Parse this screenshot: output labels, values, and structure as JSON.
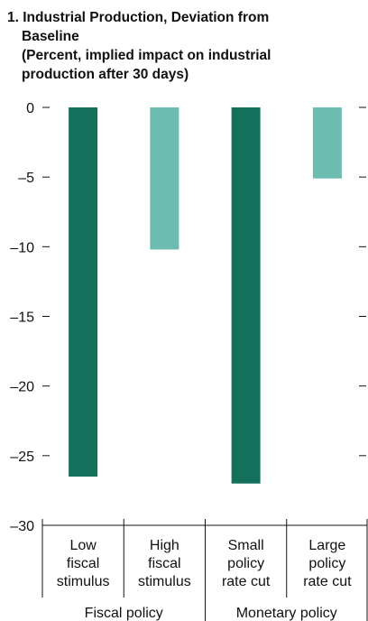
{
  "chart_data": {
    "type": "bar",
    "title_lines": [
      "1. Industrial Production, Deviation from",
      "Baseline",
      "(Percent, implied impact on industrial",
      "production after 30 days)"
    ],
    "categories": [
      [
        "Low",
        "fiscal",
        "stimulus"
      ],
      [
        "High",
        "fiscal",
        "stimulus"
      ],
      [
        "Small",
        "policy",
        "rate cut"
      ],
      [
        "Large",
        "policy",
        "rate cut"
      ]
    ],
    "groups": [
      {
        "label": "Fiscal policy",
        "span": [
          0,
          1
        ]
      },
      {
        "label": "Monetary policy",
        "span": [
          2,
          3
        ]
      }
    ],
    "values": [
      -26.5,
      -10.2,
      -27.0,
      -5.1
    ],
    "bar_colors": [
      "#13705b",
      "#6cbcb1",
      "#13705b",
      "#6cbcb1"
    ],
    "ylim": [
      -30,
      0
    ],
    "yticks": [
      0,
      -5,
      -10,
      -15,
      -20,
      -25,
      -30
    ],
    "ytick_labels": [
      "0",
      "–5",
      "–10",
      "–15",
      "–20",
      "–25",
      "–30"
    ],
    "xlabel": "",
    "ylabel": "",
    "grid": false
  },
  "colors": {
    "dark_teal": "#13705b",
    "light_teal": "#6cbcb1",
    "text": "#111111"
  }
}
